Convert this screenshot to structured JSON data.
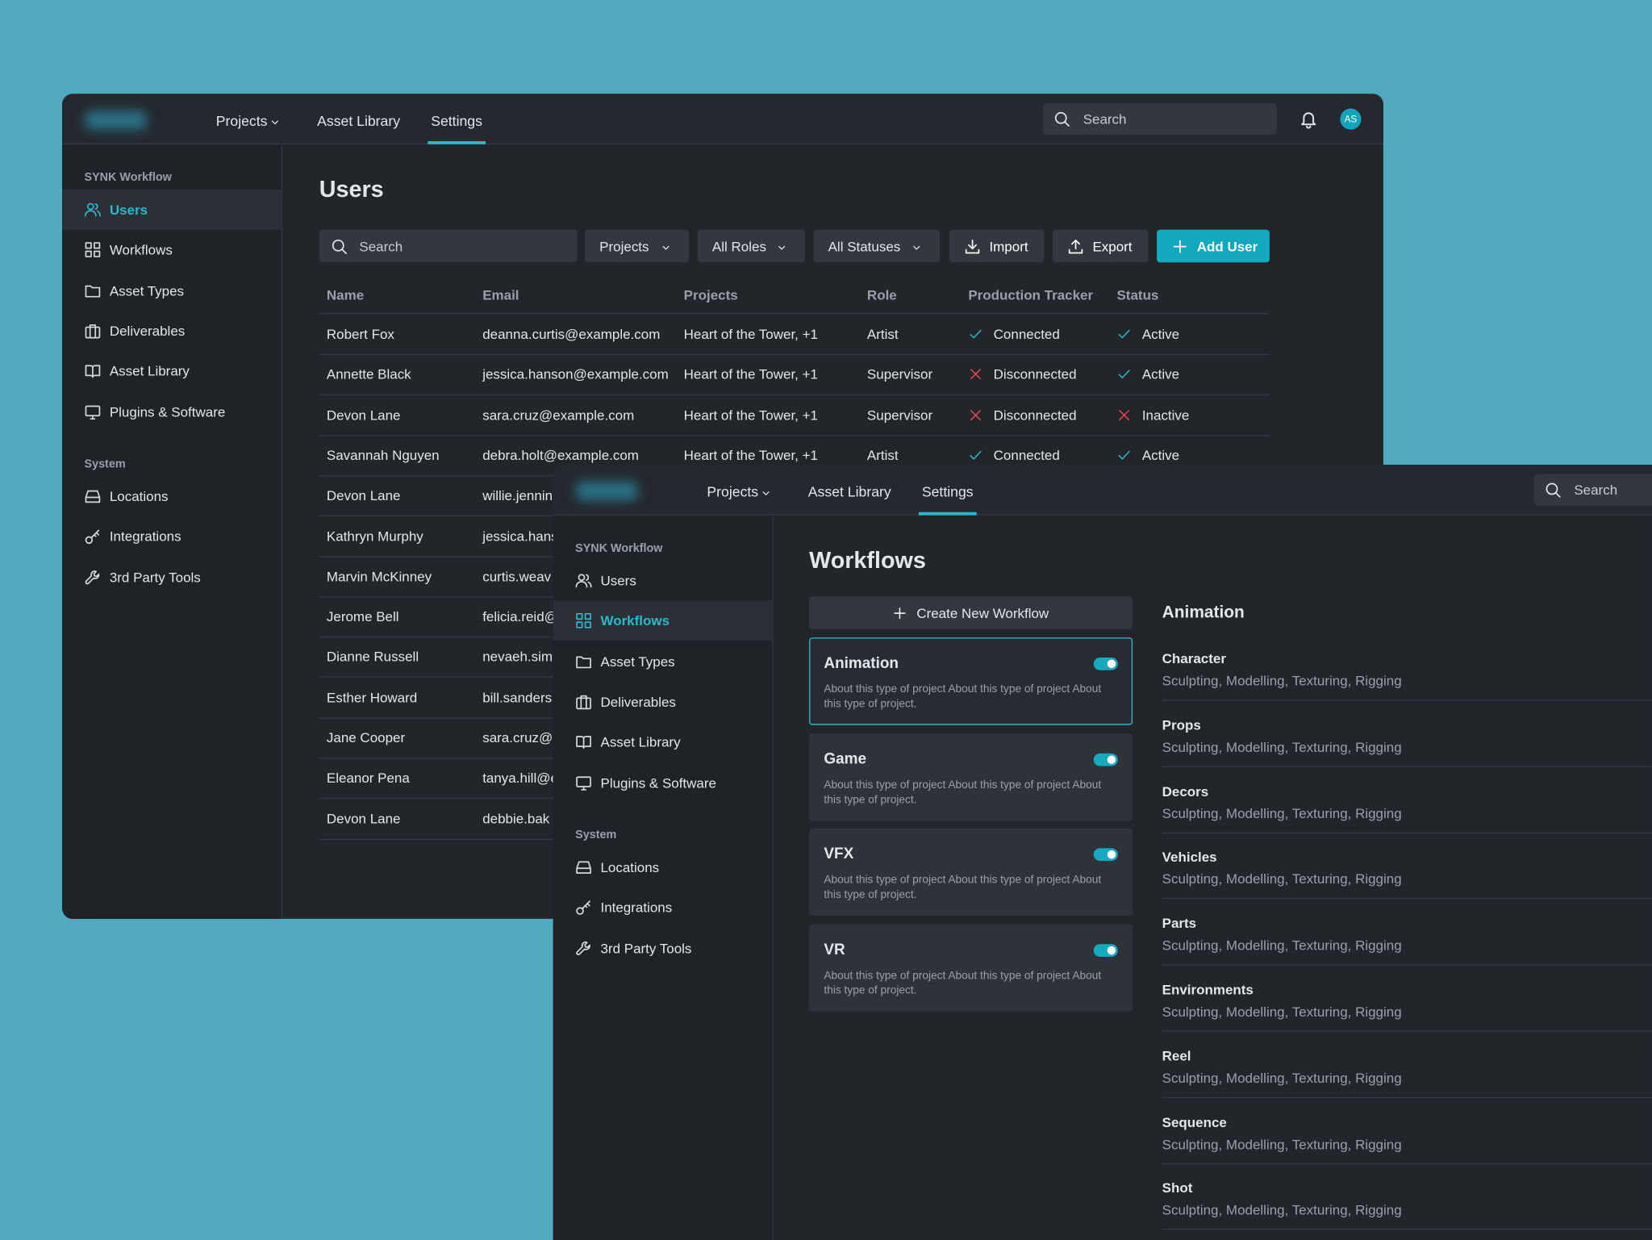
{
  "nav": {
    "items": [
      "Projects",
      "Asset Library",
      "Settings"
    ],
    "search": "Search",
    "avatar": "AS"
  },
  "sidebar": {
    "sections": [
      {
        "title": "SYNK Workflow",
        "items": [
          "Users",
          "Workflows",
          "Asset Types",
          "Deliverables",
          "Asset Library",
          "Plugins & Software"
        ]
      },
      {
        "title": "System",
        "items": [
          "Locations",
          "Integrations",
          "3rd Party Tools"
        ]
      }
    ]
  },
  "users_window": {
    "active_item": 0,
    "title": "Users",
    "search": "Search",
    "filters": [
      "Projects",
      "All Roles",
      "All Statuses"
    ],
    "actions": [
      "Import",
      "Export",
      "Add User"
    ],
    "table": {
      "columns": [
        "Name",
        "Email",
        "Projects",
        "Role",
        "Production Tracker",
        "Status"
      ],
      "rows": [
        {
          "name": "Robert Fox",
          "email": "deanna.curtis@example.com",
          "projects": "Heart of the Tower, +1",
          "role": "Artist",
          "tracker": {
            "text": "Connected",
            "icon": "check"
          },
          "status": {
            "text": "Active",
            "icon": "check"
          }
        },
        {
          "name": "Annette Black",
          "email": "jessica.hanson@example.com",
          "projects": "Heart of the Tower, +1",
          "role": "Supervisor",
          "tracker": {
            "text": "Disconnected",
            "icon": "x"
          },
          "status": {
            "text": "Active",
            "icon": "check"
          }
        },
        {
          "name": "Devon Lane",
          "email": "sara.cruz@example.com",
          "projects": "Heart of the Tower, +1",
          "role": "Supervisor",
          "tracker": {
            "text": "Disconnected",
            "icon": "x"
          },
          "status": {
            "text": "Inactive",
            "icon": "x"
          }
        },
        {
          "name": "Savannah Nguyen",
          "email": "debra.holt@example.com",
          "projects": "Heart of the Tower, +1",
          "role": "Artist",
          "tracker": {
            "text": "Connected",
            "icon": "check"
          },
          "status": {
            "text": "Active",
            "icon": "check"
          }
        },
        {
          "name": "Devon Lane",
          "email": "willie.jennin"
        },
        {
          "name": "Kathryn Murphy",
          "email": "jessica.hans"
        },
        {
          "name": "Marvin McKinney",
          "email": "curtis.weav"
        },
        {
          "name": "Jerome Bell",
          "email": "felicia.reid@"
        },
        {
          "name": "Dianne Russell",
          "email": "nevaeh.sim"
        },
        {
          "name": "Esther Howard",
          "email": "bill.sanders"
        },
        {
          "name": "Jane Cooper",
          "email": "sara.cruz@"
        },
        {
          "name": "Eleanor Pena",
          "email": "tanya.hill@e"
        },
        {
          "name": "Devon Lane",
          "email": "debbie.bak"
        }
      ]
    }
  },
  "workflows_window": {
    "active_item": 1,
    "title": "Workflows",
    "create": "Create New Workflow",
    "cards": [
      {
        "name": "Animation",
        "description": "About this type of project About this type of project About this type of project.",
        "enabled": true,
        "selected": true
      },
      {
        "name": "Game",
        "description": "About this type of project About this type of project About this type of project.",
        "enabled": true,
        "selected": false
      },
      {
        "name": "VFX",
        "description": "About this type of project About this type of project About this type of project.",
        "enabled": true,
        "selected": false
      },
      {
        "name": "VR",
        "description": "About this type of project About this type of project About this type of project.",
        "enabled": true,
        "selected": false
      }
    ],
    "detail": {
      "title": "Animation",
      "items": [
        {
          "name": "Character",
          "steps": "Sculpting, Modelling, Texturing, Rigging"
        },
        {
          "name": "Props",
          "steps": "Sculpting, Modelling, Texturing, Rigging"
        },
        {
          "name": "Decors",
          "steps": "Sculpting, Modelling, Texturing, Rigging"
        },
        {
          "name": "Vehicles",
          "steps": "Sculpting, Modelling, Texturing, Rigging"
        },
        {
          "name": "Parts",
          "steps": "Sculpting, Modelling, Texturing, Rigging"
        },
        {
          "name": "Environments",
          "steps": "Sculpting, Modelling, Texturing, Rigging"
        },
        {
          "name": "Reel",
          "steps": "Sculpting, Modelling, Texturing, Rigging"
        },
        {
          "name": "Sequence",
          "steps": "Sculpting, Modelling, Texturing, Rigging"
        },
        {
          "name": "Shot",
          "steps": "Sculpting, Modelling, Texturing, Rigging"
        }
      ]
    }
  }
}
